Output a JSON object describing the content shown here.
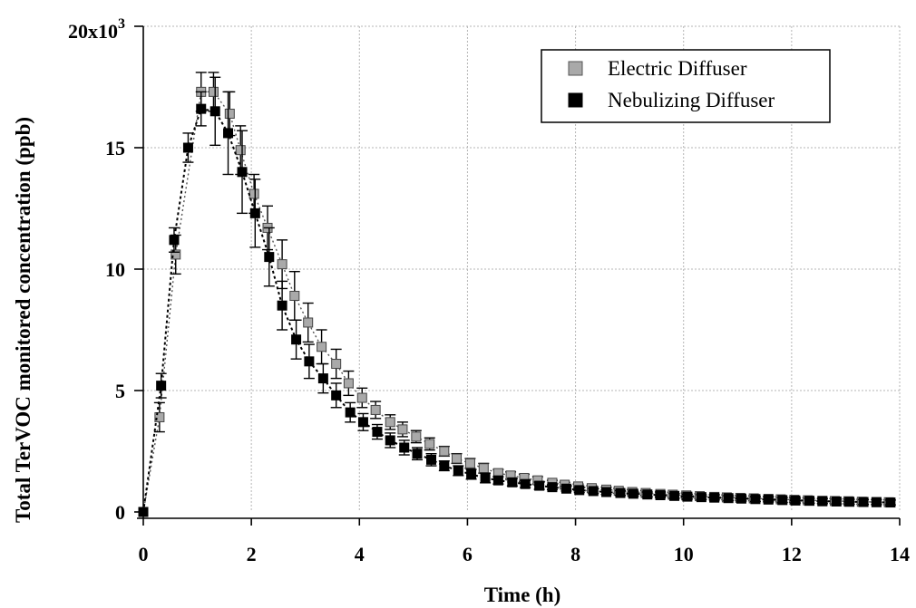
{
  "chart_data": {
    "type": "scatter",
    "title": "",
    "xlabel": "Time (h)",
    "ylabel": "Total TerVOC monitored concentration (ppb)",
    "y_multiplier_label": "x10",
    "y_multiplier_exponent": "3",
    "xlim": [
      0,
      14
    ],
    "ylim": [
      0,
      20
    ],
    "x_ticks": [
      0,
      2,
      4,
      6,
      8,
      10,
      12,
      14
    ],
    "y_ticks": [
      0,
      5,
      10,
      15,
      20
    ],
    "x_tick_labels": [
      "0",
      "2",
      "4",
      "6",
      "8",
      "10",
      "12",
      "14"
    ],
    "y_tick_labels": [
      "0",
      "5",
      "10",
      "15",
      "20"
    ],
    "grid": true,
    "legend_position": "top-right",
    "series": [
      {
        "name": "Electric Diffuser",
        "color": "#a9a9a9",
        "x": [
          0,
          0.3,
          0.6,
          1.07,
          1.3,
          1.6,
          1.8,
          2.05,
          2.3,
          2.57,
          2.8,
          3.05,
          3.3,
          3.57,
          3.8,
          4.05,
          4.3,
          4.57,
          4.8,
          5.05,
          5.3,
          5.57,
          5.8,
          6.05,
          6.3,
          6.57,
          6.8,
          7.05,
          7.3,
          7.57,
          7.8,
          8.05,
          8.3,
          8.57,
          8.8,
          9.05,
          9.3,
          9.57,
          9.8,
          10.05,
          10.3,
          10.57,
          10.8,
          11.05,
          11.3,
          11.57,
          11.8,
          12.05,
          12.3,
          12.57,
          12.8,
          13.05,
          13.3,
          13.57,
          13.8
        ],
        "y": [
          0,
          3.9,
          10.6,
          17.3,
          17.3,
          16.4,
          14.9,
          13.1,
          11.7,
          10.2,
          8.9,
          7.8,
          6.8,
          6.1,
          5.3,
          4.7,
          4.2,
          3.7,
          3.4,
          3.1,
          2.8,
          2.5,
          2.2,
          2.0,
          1.8,
          1.6,
          1.5,
          1.4,
          1.3,
          1.2,
          1.12,
          1.05,
          0.98,
          0.92,
          0.87,
          0.82,
          0.78,
          0.74,
          0.71,
          0.68,
          0.65,
          0.62,
          0.6,
          0.58,
          0.56,
          0.54,
          0.52,
          0.5,
          0.48,
          0.46,
          0.45,
          0.44,
          0.42,
          0.41,
          0.4
        ],
        "error": [
          0,
          0.6,
          0.8,
          0.8,
          0.8,
          0.9,
          1.0,
          0.8,
          0.9,
          1.0,
          1.0,
          0.8,
          0.7,
          0.6,
          0.5,
          0.4,
          0.35,
          0.3,
          0.3,
          0.25,
          0.25,
          0.2,
          0.2,
          0.2,
          0.2,
          0.15,
          0.15,
          0.15,
          0.15,
          0.1,
          0.1,
          0.1,
          0.1,
          0.1,
          0.1,
          0.1,
          0.1,
          0.1,
          0.1,
          0.1,
          0.1,
          0.1,
          0.1,
          0.1,
          0.1,
          0.1,
          0.1,
          0.1,
          0.1,
          0.1,
          0.1,
          0.1,
          0.1,
          0.1,
          0.1
        ]
      },
      {
        "name": "Nebulizing Diffuser",
        "color": "#000000",
        "x": [
          0,
          0.33,
          0.57,
          0.83,
          1.07,
          1.33,
          1.57,
          1.83,
          2.07,
          2.33,
          2.57,
          2.83,
          3.07,
          3.33,
          3.57,
          3.83,
          4.07,
          4.33,
          4.57,
          4.83,
          5.07,
          5.33,
          5.57,
          5.83,
          6.07,
          6.33,
          6.57,
          6.83,
          7.07,
          7.33,
          7.57,
          7.83,
          8.07,
          8.33,
          8.57,
          8.83,
          9.07,
          9.33,
          9.57,
          9.83,
          10.07,
          10.33,
          10.57,
          10.83,
          11.07,
          11.33,
          11.57,
          11.83,
          12.07,
          12.33,
          12.57,
          12.83,
          13.07,
          13.33,
          13.57,
          13.83
        ],
        "y": [
          0,
          5.2,
          11.2,
          15.0,
          16.6,
          16.5,
          15.6,
          14.0,
          12.3,
          10.5,
          8.5,
          7.1,
          6.2,
          5.5,
          4.8,
          4.1,
          3.7,
          3.3,
          2.95,
          2.65,
          2.4,
          2.15,
          1.9,
          1.7,
          1.55,
          1.4,
          1.3,
          1.22,
          1.15,
          1.08,
          1.02,
          0.96,
          0.9,
          0.86,
          0.82,
          0.78,
          0.75,
          0.72,
          0.69,
          0.66,
          0.63,
          0.61,
          0.59,
          0.57,
          0.55,
          0.53,
          0.51,
          0.49,
          0.47,
          0.46,
          0.44,
          0.43,
          0.42,
          0.41,
          0.4,
          0.39
        ],
        "error": [
          0,
          0.5,
          0.5,
          0.6,
          0.7,
          1.4,
          1.7,
          1.7,
          1.4,
          1.2,
          1.0,
          0.8,
          0.7,
          0.6,
          0.5,
          0.4,
          0.35,
          0.3,
          0.3,
          0.3,
          0.25,
          0.25,
          0.2,
          0.2,
          0.2,
          0.2,
          0.15,
          0.15,
          0.15,
          0.15,
          0.1,
          0.1,
          0.1,
          0.1,
          0.1,
          0.1,
          0.1,
          0.1,
          0.1,
          0.1,
          0.1,
          0.1,
          0.1,
          0.1,
          0.1,
          0.1,
          0.1,
          0.1,
          0.1,
          0.1,
          0.1,
          0.1,
          0.1,
          0.1,
          0.1,
          0.1
        ]
      }
    ]
  }
}
